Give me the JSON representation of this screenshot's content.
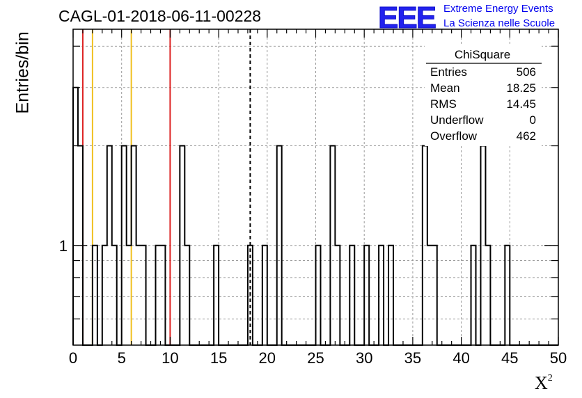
{
  "header": {
    "title": "CAGL-01-2018-06-11-00228",
    "logo_text": "EEE",
    "brand_line1": "Extreme Energy Events",
    "brand_line2": "La Scienza nelle Scuole"
  },
  "chart_data": {
    "type": "bar",
    "xlabel": "X",
    "xlabel_superscript": "2",
    "ylabel": "Entries/bin",
    "xlim": [
      0,
      50
    ],
    "ylim": [
      0.5,
      4.5
    ],
    "log_y": true,
    "grid": true,
    "bin_width": 0.5,
    "x_ticks": [
      0,
      5,
      10,
      15,
      20,
      25,
      30,
      35,
      40,
      45,
      50
    ],
    "y_tick_labels": [
      {
        "value": 1,
        "label": "1"
      }
    ],
    "bins": [
      {
        "x": 0.25,
        "count": 3
      },
      {
        "x": 0.75,
        "count": 2
      },
      {
        "x": 2.25,
        "count": 1
      },
      {
        "x": 3.25,
        "count": 1
      },
      {
        "x": 3.75,
        "count": 2
      },
      {
        "x": 4.25,
        "count": 1
      },
      {
        "x": 5.25,
        "count": 2
      },
      {
        "x": 5.75,
        "count": 1
      },
      {
        "x": 6.25,
        "count": 2
      },
      {
        "x": 6.75,
        "count": 1
      },
      {
        "x": 7.25,
        "count": 1
      },
      {
        "x": 8.75,
        "count": 1
      },
      {
        "x": 9.25,
        "count": 1
      },
      {
        "x": 11.25,
        "count": 2
      },
      {
        "x": 11.75,
        "count": 1
      },
      {
        "x": 14.75,
        "count": 1
      },
      {
        "x": 18.25,
        "count": 1
      },
      {
        "x": 19.75,
        "count": 1
      },
      {
        "x": 21.25,
        "count": 2
      },
      {
        "x": 25.25,
        "count": 1
      },
      {
        "x": 26.75,
        "count": 2
      },
      {
        "x": 27.25,
        "count": 1
      },
      {
        "x": 28.75,
        "count": 1
      },
      {
        "x": 30.25,
        "count": 1
      },
      {
        "x": 31.75,
        "count": 1
      },
      {
        "x": 32.75,
        "count": 1
      },
      {
        "x": 36.25,
        "count": 2
      },
      {
        "x": 36.75,
        "count": 1
      },
      {
        "x": 37.25,
        "count": 1
      },
      {
        "x": 41.25,
        "count": 1
      },
      {
        "x": 42.25,
        "count": 2
      },
      {
        "x": 42.75,
        "count": 1
      },
      {
        "x": 44.75,
        "count": 1
      }
    ],
    "vertical_lines": [
      {
        "x": 1,
        "color": "#dd2222",
        "style": "solid"
      },
      {
        "x": 2,
        "color": "#f0c020",
        "style": "solid"
      },
      {
        "x": 6,
        "color": "#f0c020",
        "style": "solid"
      },
      {
        "x": 10,
        "color": "#dd2222",
        "style": "solid"
      },
      {
        "x": 18.25,
        "color": "#000000",
        "style": "dashed"
      }
    ],
    "stats_box": {
      "title": "ChiSquare",
      "rows": [
        {
          "label": "Entries",
          "value": "506"
        },
        {
          "label": "Mean",
          "value": "18.25"
        },
        {
          "label": "RMS",
          "value": "14.45"
        },
        {
          "label": "Underflow",
          "value": "0"
        },
        {
          "label": "Overflow",
          "value": "462"
        }
      ]
    }
  }
}
